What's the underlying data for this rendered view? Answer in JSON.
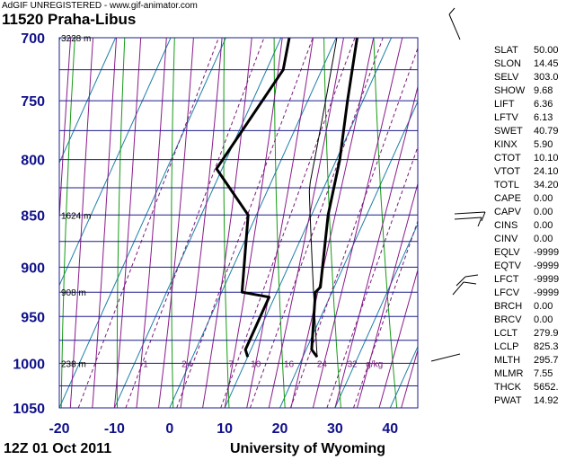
{
  "banner": "AdGIF UNREGISTERED - www.gif-animator.com",
  "station": "11520  Praha-Libus",
  "footer": {
    "time": "12Z 01 Oct 2011",
    "source": "University of Wyoming"
  },
  "colors": {
    "grid": "#1c1c8c",
    "isotherm": "#1f7fa8",
    "dry_adiabat": "#159a15",
    "moist_adiabat": "#8a1a8a",
    "mixing_ratio": "#7a1a7a",
    "profile": "#000000"
  },
  "chart_data": {
    "type": "line",
    "title": "",
    "xlabel": "",
    "ylabel": "",
    "xlim": [
      -20,
      45
    ],
    "ylim": [
      1050,
      700
    ],
    "x_ticks": [
      "-20",
      "-10",
      "0",
      "10",
      "20",
      "30",
      "40"
    ],
    "y_ticks": [
      "700",
      "750",
      "800",
      "850",
      "900",
      "950",
      "1000",
      "1050"
    ],
    "height_labels": [
      {
        "text": "3228 m",
        "p": 700
      },
      {
        "text": "1624 m",
        "p": 850
      },
      {
        "text": "908 m",
        "p": 925
      },
      {
        "text": "238 m",
        "p": 1000
      }
    ],
    "mixing_ratio_labels": [
      {
        "text": "1",
        "t": -8,
        "p": 1000
      },
      {
        "text": "2",
        "t": -1,
        "p": 1000
      },
      {
        "text": "4",
        "t": 0,
        "p": 1000
      },
      {
        "text": "7",
        "t": 7.5,
        "p": 1000
      },
      {
        "text": "10",
        "t": 12,
        "p": 1000
      },
      {
        "text": "16",
        "t": 18,
        "p": 1000
      },
      {
        "text": "24",
        "t": 24,
        "p": 1000
      },
      {
        "text": "32",
        "t": 29.5,
        "p": 1000
      },
      {
        "text": "g/kg",
        "t": 33.5,
        "p": 1000
      }
    ],
    "series": [
      {
        "points": [
          {
            "p": 993,
            "t": 22.6
          },
          {
            "p": 985,
            "t": 21.0
          },
          {
            "p": 925,
            "t": 17.0
          },
          {
            "p": 920,
            "t": 17.5
          },
          {
            "p": 850,
            "t": 13.0
          },
          {
            "p": 800,
            "t": 10.6
          },
          {
            "p": 750,
            "t": 7.2
          },
          {
            "p": 700,
            "t": 3.8
          }
        ]
      },
      {
        "points": [
          {
            "p": 993,
            "t": 10.0
          },
          {
            "p": 985,
            "t": 9.0
          },
          {
            "p": 930,
            "t": 9.0
          },
          {
            "p": 925,
            "t": 3.7
          },
          {
            "p": 850,
            "t": -1.5
          },
          {
            "p": 808,
            "t": -11.0
          },
          {
            "p": 725,
            "t": -7.0
          },
          {
            "p": 700,
            "t": -8.5
          }
        ]
      }
    ]
  },
  "wind_barbs": [
    "barb-top",
    "barb-850a",
    "barb-850b",
    "barb-925a",
    "barb-925b",
    "barb-1000"
  ],
  "indices": [
    {
      "key": "SLAT",
      "value": "50.00"
    },
    {
      "key": "SLON",
      "value": "14.45"
    },
    {
      "key": "SELV",
      "value": "303.0"
    },
    {
      "key": "SHOW",
      "value": "9.68"
    },
    {
      "key": "LIFT",
      "value": "6.36"
    },
    {
      "key": "LFTV",
      "value": "6.13"
    },
    {
      "key": "SWET",
      "value": "40.79"
    },
    {
      "key": "KINX",
      "value": "5.90"
    },
    {
      "key": "CTOT",
      "value": "10.10"
    },
    {
      "key": "VTOT",
      "value": "24.10"
    },
    {
      "key": "TOTL",
      "value": "34.20"
    },
    {
      "key": "CAPE",
      "value": "0.00"
    },
    {
      "key": "CAPV",
      "value": "0.00"
    },
    {
      "key": "CINS",
      "value": "0.00"
    },
    {
      "key": "CINV",
      "value": "0.00"
    },
    {
      "key": "EQLV",
      "value": "-9999"
    },
    {
      "key": "EQTV",
      "value": "-9999"
    },
    {
      "key": "LFCT",
      "value": "-9999"
    },
    {
      "key": "LFCV",
      "value": "-9999"
    },
    {
      "key": "BRCH",
      "value": "0.00"
    },
    {
      "key": "BRCV",
      "value": "0.00"
    },
    {
      "key": "LCLT",
      "value": "279.9"
    },
    {
      "key": "LCLP",
      "value": "825.3"
    },
    {
      "key": "MLTH",
      "value": "295.7"
    },
    {
      "key": "MLMR",
      "value": "7.55"
    },
    {
      "key": "THCK",
      "value": "5652."
    },
    {
      "key": "PWAT",
      "value": "14.92"
    }
  ]
}
